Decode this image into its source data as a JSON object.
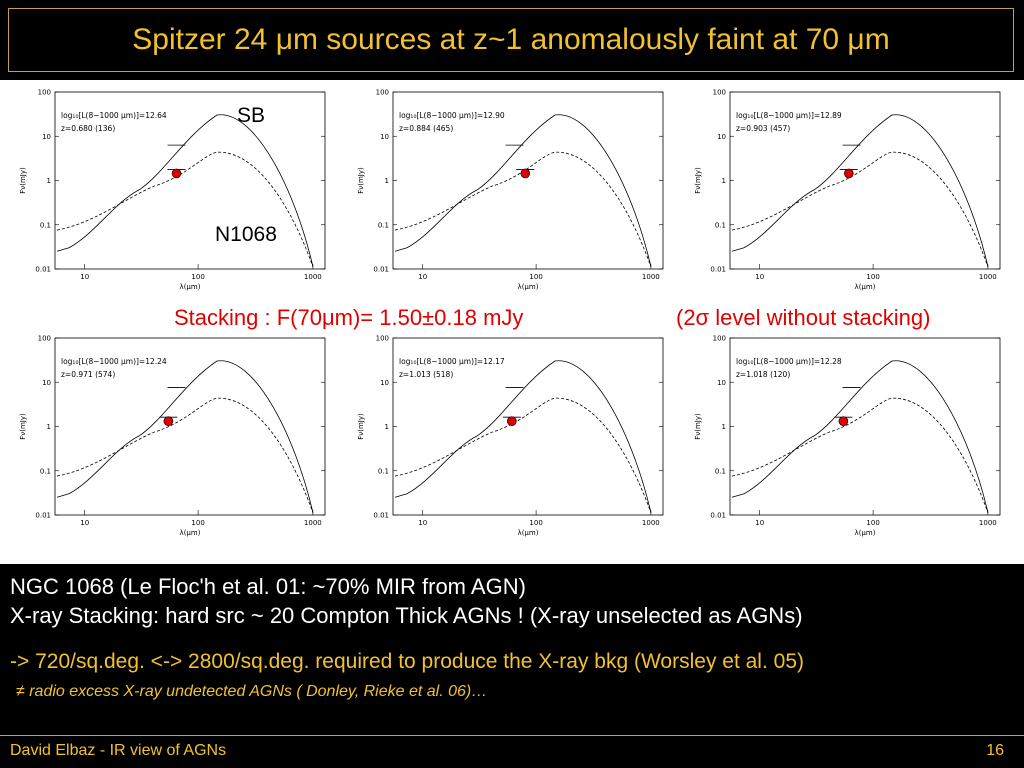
{
  "title": "Spitzer 24 μm sources at z~1 anomalously faint at 70 μm",
  "figure": {
    "label_sb": "SB",
    "label_n1068": "N1068",
    "stacking_text": "Stacking : F(70μm)= 1.50±0.18 mJy",
    "sigma_text": "(2σ level without stacking)",
    "panels": [
      {
        "lir": "log₁₀[L(8−1000 μm)]=12.64",
        "z": "z=0.680 (136)"
      },
      {
        "lir": "log₁₀[L(8−1000 μm)]=12.90",
        "z": "z=0.884 (465)"
      },
      {
        "lir": "log₁₀[L(8−1000 μm)]=12.89",
        "z": "z=0.903 (457)"
      },
      {
        "lir": "log₁₀[L(8−1000 μm)]=12.24",
        "z": "z=0.971 (574)"
      },
      {
        "lir": "log₁₀[L(8−1000 μm)]=12.17",
        "z": "z=1.013 (518)"
      },
      {
        "lir": "log₁₀[L(8−1000 μm)]=12.28",
        "z": "z=1.018 (120)"
      }
    ],
    "y_ticks": [
      "100",
      "10",
      "1",
      "0.1",
      "0.01"
    ],
    "x_ticks": [
      "10",
      "100",
      "1000"
    ],
    "ylabel": "Fν(mJy)",
    "xlabel": "λ(μm)"
  },
  "text": {
    "line1": "NGC 1068 (Le Floc'h et al. 01: ~70% MIR from AGN)",
    "line2": "X-ray Stacking: hard src  ~ 20 Compton Thick AGNs ! (X-ray unselected as AGNs)",
    "line3": "-> 720/sq.deg. <-> 2800/sq.deg. required to produce the X-ray bkg (Worsley et al. 05)",
    "line4": "≠ radio excess X-ray undetected AGNs ( Donley, Rieke et al. 06)…"
  },
  "footer": {
    "author": "David Elbaz - IR view of AGNs",
    "page": "16"
  },
  "colors": {
    "accent": "#f2c12e",
    "red": "#e00000"
  }
}
